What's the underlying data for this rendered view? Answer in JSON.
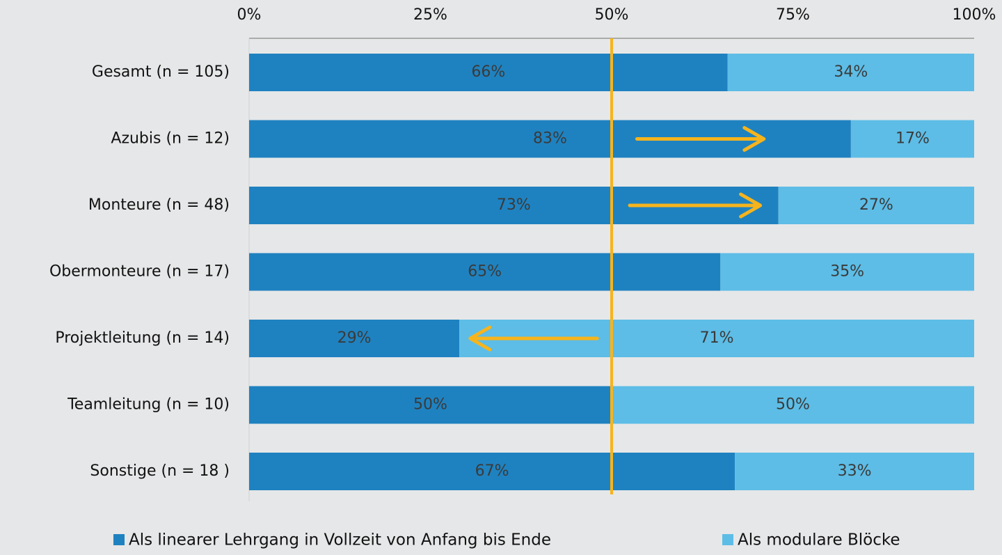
{
  "chart_data": {
    "type": "stacked_bar_horizontal",
    "categories": [
      "Gesamt (n = 105)",
      "Azubis (n = 12)",
      "Monteure (n = 48)",
      "Obermonteure (n = 17)",
      "Projektleitung (n = 14)",
      "Teamleitung (n = 10)",
      "Sonstige (n = 18 )"
    ],
    "series": [
      {
        "name": "Als linearer Lehrgang in Vollzeit von Anfang bis Ende",
        "color": "#1f82c0",
        "values": [
          66,
          83,
          73,
          65,
          29,
          50,
          67
        ],
        "value_labels": [
          "66%",
          "83%",
          "73%",
          "65%",
          "29%",
          "50%",
          "67%"
        ]
      },
      {
        "name": "Als modulare Blöcke",
        "color": "#5dbde6",
        "values": [
          34,
          17,
          27,
          35,
          71,
          50,
          33
        ],
        "value_labels": [
          "34%",
          "17%",
          "27%",
          "35%",
          "71%",
          "50%",
          "33%"
        ]
      }
    ],
    "xlim": [
      0,
      100
    ],
    "xticks": [
      {
        "value": 0,
        "label": "0%"
      },
      {
        "value": 25,
        "label": "25%"
      },
      {
        "value": 50,
        "label": "50%"
      },
      {
        "value": 75,
        "label": "75%"
      },
      {
        "value": 100,
        "label": "100%"
      }
    ],
    "reference_line": {
      "value": 50,
      "color": "#f6b41c"
    },
    "arrows": [
      {
        "category": 1,
        "from": 53.5,
        "to": 71
      },
      {
        "category": 2,
        "from": 52.5,
        "to": 70.5
      },
      {
        "category": 4,
        "from": 48,
        "to": 30.5
      }
    ],
    "grid": false,
    "legend": "bottom"
  }
}
